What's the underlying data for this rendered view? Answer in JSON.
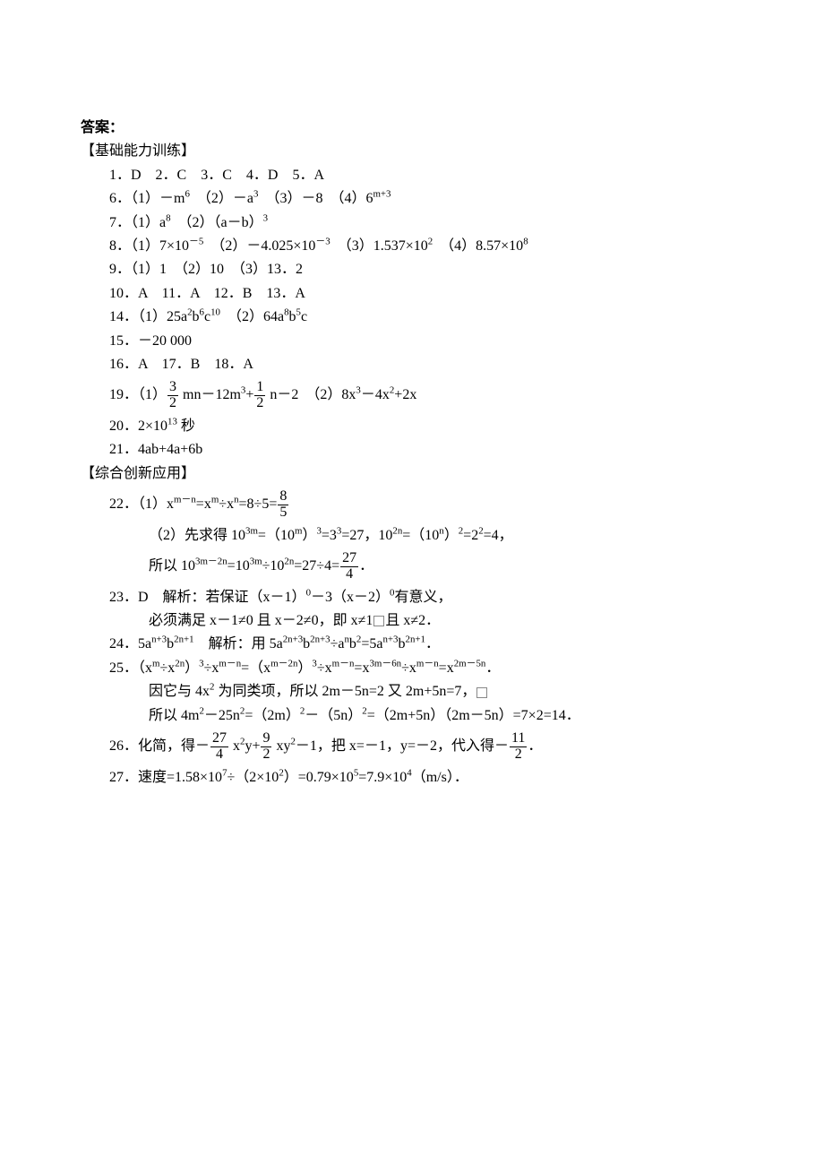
{
  "title": "答案：",
  "section1": {
    "header": "【基础能力训练】",
    "q1to5": "1．D　2．C　3．C　4．D　5．A",
    "q6_prefix": "6．（1）－m",
    "q6_mid1": "　（2）－a",
    "q6_mid2": "　（3）－8　（4）6",
    "q7_prefix": "7．（1）a",
    "q7_mid": "　（2）（a－b）",
    "q8_p1": "8．（1）7×10",
    "q8_p2": "　（2）－4.025×10",
    "q8_p3": "　（3）1.537×10",
    "q8_p4": "　（4）8.57×10",
    "q9": "9．（1）1　（2）10　（3）13．2",
    "q10to13": "10．A　11．A　12．B　13．A",
    "q14_p1": "14．（1）25a",
    "q14_p2": "b",
    "q14_p3": "c",
    "q14_p4": "　（2）64a",
    "q14_p5": "b",
    "q14_p6": "c",
    "q15": "15．－20 000",
    "q16to18": "16．A　17．B　18．A",
    "q19_prefix": "19．（1）",
    "q19_mid1": " mn－12m",
    "q19_mid2": "+",
    "q19_mid3": " n－2　（2）8x",
    "q19_mid4": "－4x",
    "q19_mid5": "+2x",
    "q20_p1": "20．2×10",
    "q20_p2": " 秒",
    "q21": "21．4ab+4a+6b"
  },
  "section2": {
    "header": "【综合创新应用】",
    "q22_1_p1": "22．（1）x",
    "q22_1_p2": "=x",
    "q22_1_p3": "÷x",
    "q22_1_p4": "=8÷5=",
    "q22_2_p1": "（2）先求得 10",
    "q22_2_p2": "=（10",
    "q22_2_p3": "）",
    "q22_2_p4": "=3",
    "q22_2_p5": "=27，10",
    "q22_2_p6": "=（10",
    "q22_2_p7": "）",
    "q22_2_p8": "=2",
    "q22_2_p9": "=4，",
    "q22_3_p1": "所以 10",
    "q22_3_p2": "=10",
    "q22_3_p3": "÷10",
    "q22_3_p4": "=27÷4=",
    "q22_3_p5": "．",
    "q23_l1_p1": "23．D　解析：若保证（x－1）",
    "q23_l1_p2": "－3（x－2）",
    "q23_l1_p3": "有意义，",
    "q23_l2_p1": "必须满足 x－1≠0 且 x－2≠0，即 x≠1",
    "q23_l2_p2": "且 x≠2．",
    "q24_p1": "24．5a",
    "q24_p2": "b",
    "q24_p3": "　解析：用 5a",
    "q24_p4": "b",
    "q24_p5": "÷a",
    "q24_p6": "b",
    "q24_p7": "=5a",
    "q24_p8": "b",
    "q24_p9": "．",
    "q25_l1_p1": "25．（x",
    "q25_l1_p2": "÷x",
    "q25_l1_p3": "）",
    "q25_l1_p4": "÷x",
    "q25_l1_p5": "=（x",
    "q25_l1_p6": "）",
    "q25_l1_p7": "÷x",
    "q25_l1_p8": "=x",
    "q25_l1_p9": "÷x",
    "q25_l1_p10": "=x",
    "q25_l1_p11": "．",
    "q25_l2_p1": "因它与 4x",
    "q25_l2_p2": " 为同类项，所以 2m－5n=2 又 2m+5n=7，",
    "q25_l3_p1": "所以 4m",
    "q25_l3_p2": "－25n",
    "q25_l3_p3": "=（2m）",
    "q25_l3_p4": "－（5n）",
    "q25_l3_p5": "=（2m+5n）（2m－5n）=7×2=14．",
    "q26_p1": "26．化简，得－",
    "q26_p2": " x",
    "q26_p3": "y+",
    "q26_p4": " xy",
    "q26_p5": "－1，把 x=－1，y=－2，代入得－",
    "q26_p6": "．",
    "q27_p1": "27．速度=1.58×10",
    "q27_p2": "÷（2×10",
    "q27_p3": "）=0.79×10",
    "q27_p4": "=7.9×10",
    "q27_p5": "（m/s）．",
    "frac_3_2_num": "3",
    "frac_3_2_den": "2",
    "frac_1_2_num": "1",
    "frac_1_2_den": "2",
    "frac_8_5_num": "8",
    "frac_8_5_den": "5",
    "frac_27_4_num": "27",
    "frac_27_4_den": "4",
    "frac_9_2_num": "9",
    "frac_9_2_den": "2",
    "frac_11_2_num": "11",
    "frac_11_2_den": "2"
  },
  "exp": {
    "six": "6",
    "three": "3",
    "m_plus_3": "m+3",
    "eight": "8",
    "neg5": "－5",
    "neg3": "－3",
    "two": "2",
    "ten": "10",
    "five": "5",
    "thirteen": "13",
    "one_c": "c",
    "m_minus_n": "m－n",
    "m": "m",
    "n": "n",
    "three_m": "3m",
    "two_n": "2n",
    "three_m_minus_two_n": "3m－2n",
    "zero": "0",
    "n_plus_3": "n+3",
    "two_n_plus_1": "2n+1",
    "two_n_plus_3": "2n+3",
    "m_minus_2n": "m－2n",
    "three_m_minus_6n": "3m－6n",
    "two_m_minus_5n": "2m－5n",
    "seven": "7",
    "four": "4"
  }
}
